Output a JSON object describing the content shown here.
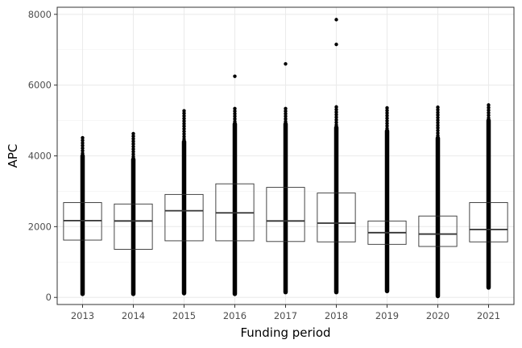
{
  "chart_data": {
    "type": "boxplot",
    "title": "",
    "xlabel": "Funding period",
    "ylabel": "APC",
    "ylim": [
      -200,
      8200
    ],
    "y_ticks": [
      0,
      2000,
      4000,
      6000,
      8000
    ],
    "grid": true,
    "categories": [
      "2013",
      "2014",
      "2015",
      "2016",
      "2017",
      "2018",
      "2019",
      "2020",
      "2021"
    ],
    "boxes": [
      {
        "q1": 1620,
        "median": 2170,
        "q3": 2680,
        "min": 100,
        "whisker_max": 4000,
        "outliers_top": 4550,
        "outliers": []
      },
      {
        "q1": 1360,
        "median": 2160,
        "q3": 2640,
        "min": 100,
        "whisker_max": 3900,
        "outliers_top": 4650,
        "outliers": []
      },
      {
        "q1": 1600,
        "median": 2450,
        "q3": 2910,
        "min": 120,
        "whisker_max": 4400,
        "outliers_top": 5300,
        "outliers": []
      },
      {
        "q1": 1600,
        "median": 2390,
        "q3": 3210,
        "min": 100,
        "whisker_max": 4900,
        "outliers_top": 5400,
        "outliers": [
          6250
        ]
      },
      {
        "q1": 1580,
        "median": 2160,
        "q3": 3110,
        "min": 150,
        "whisker_max": 4900,
        "outliers_top": 5400,
        "outliers": [
          6600
        ]
      },
      {
        "q1": 1570,
        "median": 2100,
        "q3": 2950,
        "min": 150,
        "whisker_max": 4800,
        "outliers_top": 5400,
        "outliers": [
          7150,
          7850
        ]
      },
      {
        "q1": 1500,
        "median": 1830,
        "q3": 2160,
        "min": 180,
        "whisker_max": 4700,
        "outliers_top": 5380,
        "outliers": []
      },
      {
        "q1": 1440,
        "median": 1790,
        "q3": 2300,
        "min": 40,
        "whisker_max": 4500,
        "outliers_top": 5380,
        "outliers": []
      },
      {
        "q1": 1570,
        "median": 1920,
        "q3": 2680,
        "min": 280,
        "whisker_max": 5000,
        "outliers_top": 5450,
        "outliers": []
      }
    ]
  }
}
